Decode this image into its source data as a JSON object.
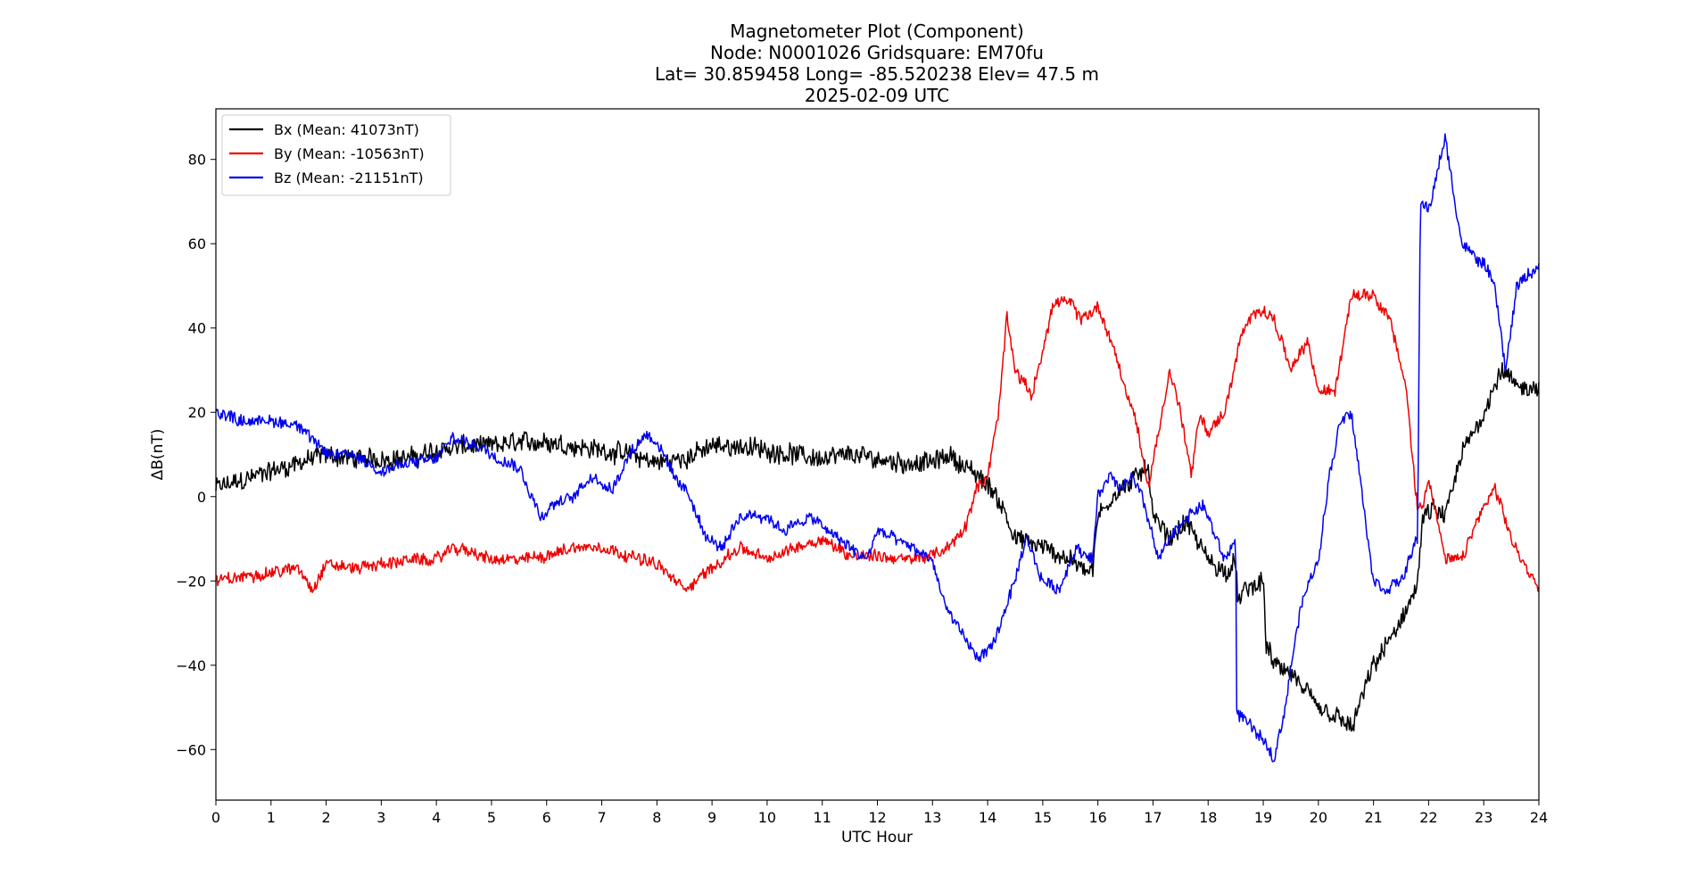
{
  "chart_data": {
    "type": "line",
    "title_lines": [
      "Magnetometer Plot (Component)",
      "Node:  N0001026     Gridsquare:  EM70fu",
      "Lat= 30.859458    Long= -85.520238    Elev= 47.5 m",
      "2025-02-09  UTC"
    ],
    "xlabel": "UTC Hour",
    "ylabel": "ΔB(nT)",
    "xlim": [
      0,
      24
    ],
    "ylim": [
      -72,
      92
    ],
    "xticks": [
      0,
      1,
      2,
      3,
      4,
      5,
      6,
      7,
      8,
      9,
      10,
      11,
      12,
      13,
      14,
      15,
      16,
      17,
      18,
      19,
      20,
      21,
      22,
      23,
      24
    ],
    "yticks": [
      -60,
      -40,
      -20,
      0,
      20,
      40,
      60,
      80
    ],
    "ytick_labels": [
      "−60",
      "−40",
      "−20",
      "0",
      "20",
      "40",
      "60",
      "80"
    ],
    "grid": false,
    "legend_position": "top-left",
    "series": [
      {
        "name": "Bx (Mean: 41073nT)",
        "color": "#000000",
        "noise": 2.6,
        "x": [
          0,
          0.5,
          1,
          1.5,
          2,
          2.5,
          3,
          3.5,
          4,
          4.5,
          5,
          5.5,
          6,
          6.5,
          7,
          7.5,
          8,
          8.5,
          9,
          9.5,
          10,
          10.5,
          11,
          11.5,
          12,
          12.5,
          13,
          13.3,
          13.6,
          14,
          14.3,
          14.5,
          15,
          15.5,
          15.9,
          16,
          16.3,
          16.6,
          16.9,
          17,
          17.3,
          17.6,
          18,
          18.3,
          18.5,
          18.55,
          18.7,
          19,
          19.05,
          19.2,
          19.5,
          20,
          20.3,
          20.6,
          21,
          21.5,
          21.8,
          21.9,
          22.1,
          22.3,
          22.6,
          23,
          23.3,
          23.6,
          24
        ],
        "y": [
          2,
          4,
          6,
          8,
          10,
          9,
          9,
          9,
          11,
          12,
          12,
          13,
          13,
          12,
          11,
          10,
          8,
          9,
          12,
          12,
          11,
          10,
          9,
          10,
          9,
          8,
          8,
          10,
          7,
          3,
          -3,
          -10,
          -12,
          -15,
          -18,
          -5,
          1,
          3,
          8,
          -5,
          -10,
          -6,
          -15,
          -18,
          -16,
          -25,
          -22,
          -20,
          -35,
          -40,
          -42,
          -50,
          -52,
          -55,
          -40,
          -30,
          -20,
          -5,
          -3,
          -5,
          10,
          20,
          30,
          26,
          26
        ]
      },
      {
        "name": "By (Mean: -10563nT)",
        "color": "#ee0000",
        "noise": 1.6,
        "x": [
          0,
          0.5,
          1,
          1.5,
          1.75,
          2,
          2.5,
          3,
          3.5,
          4,
          4.3,
          4.6,
          5,
          5.5,
          6,
          6.5,
          7,
          7.5,
          8,
          8.5,
          9,
          9.5,
          10,
          10.5,
          11,
          11.5,
          12,
          12.5,
          13,
          13.3,
          13.6,
          13.8,
          14,
          14.2,
          14.35,
          14.5,
          14.8,
          15,
          15.2,
          15.5,
          15.7,
          16,
          16.3,
          16.5,
          16.7,
          16.9,
          17.1,
          17.3,
          17.5,
          17.7,
          17.85,
          18,
          18.3,
          18.6,
          18.9,
          19.2,
          19.5,
          19.8,
          20,
          20.3,
          20.6,
          21,
          21.3,
          21.6,
          21.7,
          21.8,
          21.9,
          22,
          22.3,
          22.6,
          22.9,
          23.2,
          23.5,
          23.8,
          24
        ],
        "y": [
          -20,
          -19,
          -18,
          -17,
          -22,
          -16,
          -17,
          -16,
          -15,
          -15,
          -12,
          -13,
          -15,
          -15,
          -14,
          -12,
          -12,
          -14,
          -16,
          -22,
          -17,
          -12,
          -15,
          -12,
          -10,
          -14,
          -14,
          -15,
          -14,
          -12,
          -7,
          2,
          5,
          20,
          43,
          30,
          24,
          35,
          46,
          46,
          42,
          45,
          35,
          25,
          18,
          2,
          15,
          30,
          20,
          5,
          20,
          15,
          20,
          38,
          45,
          42,
          30,
          37,
          25,
          25,
          48,
          48,
          42,
          25,
          10,
          -3,
          -2,
          5,
          -15,
          -15,
          -5,
          2,
          -10,
          -18,
          -21
        ]
      },
      {
        "name": "Bz (Mean: -21151nT)",
        "color": "#0000ee",
        "noise": 1.6,
        "x": [
          0,
          0.5,
          1,
          1.5,
          2,
          2.5,
          3,
          3.5,
          4,
          4.3,
          4.5,
          4.8,
          5,
          5.5,
          5.9,
          6.1,
          6.5,
          6.8,
          7,
          7.2,
          7.5,
          7.8,
          8,
          8.3,
          8.6,
          8.9,
          9.2,
          9.5,
          9.8,
          10,
          10.3,
          10.6,
          10.8,
          11,
          11.3,
          11.5,
          11.8,
          12,
          12.3,
          12.6,
          13,
          13.2,
          13.5,
          13.8,
          14,
          14.1,
          14.5,
          14.7,
          15,
          15.3,
          15.6,
          15.9,
          16,
          16.2,
          16.4,
          16.6,
          16.8,
          17,
          17.1,
          17.3,
          17.6,
          17.9,
          18,
          18.3,
          18.5,
          18.52,
          18.6,
          18.8,
          19,
          19.2,
          19.4,
          19.5,
          19.7,
          20,
          20.2,
          20.4,
          20.6,
          20.8,
          21,
          21.2,
          21.5,
          21.8,
          21.85,
          22,
          22.3,
          22.6,
          23,
          23.2,
          23.4,
          23.6,
          24
        ],
        "y": [
          20,
          18,
          18,
          17,
          10,
          10,
          6,
          8,
          9,
          14,
          13,
          12,
          10,
          7,
          -5,
          -2,
          0,
          5,
          3,
          2,
          10,
          15,
          13,
          5,
          0,
          -10,
          -12,
          -5,
          -4,
          -5,
          -8,
          -6,
          -5,
          -7,
          -10,
          -12,
          -15,
          -8,
          -10,
          -12,
          -15,
          -25,
          -32,
          -38,
          -37,
          -35,
          -20,
          -10,
          -20,
          -22,
          -12,
          -15,
          0,
          5,
          2,
          5,
          0,
          -10,
          -15,
          -10,
          -5,
          -2,
          -5,
          -15,
          -10,
          -52,
          -52,
          -55,
          -58,
          -62,
          -50,
          -40,
          -25,
          -15,
          5,
          18,
          20,
          0,
          -20,
          -22,
          -20,
          -10,
          70,
          68,
          85,
          60,
          55,
          50,
          30,
          50,
          55
        ]
      }
    ]
  }
}
